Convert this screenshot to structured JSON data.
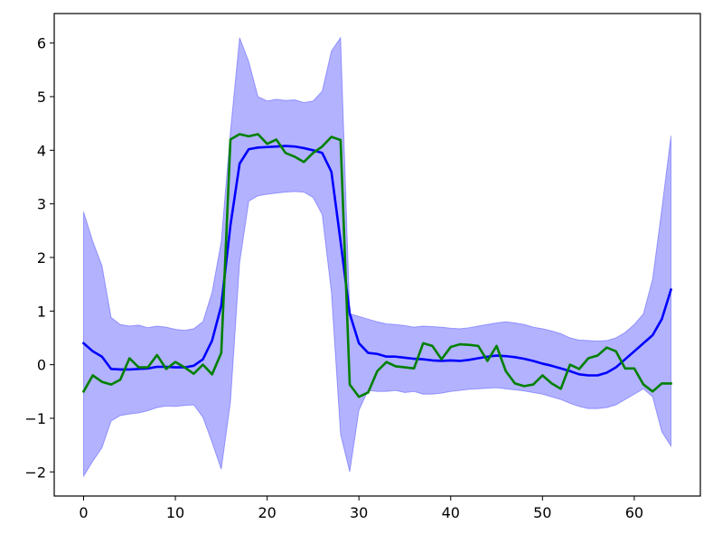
{
  "chart_data": {
    "type": "line",
    "title": "",
    "xlabel": "",
    "ylabel": "",
    "xlim": [
      -3.2,
      67.2
    ],
    "ylim": [
      -2.45,
      6.55
    ],
    "grid": false,
    "legend": "none",
    "x_ticks": [
      0,
      10,
      20,
      30,
      40,
      50,
      60
    ],
    "y_ticks": [
      -2,
      -1,
      0,
      1,
      2,
      3,
      4,
      5,
      6
    ],
    "x_tick_labels": [
      "0",
      "10",
      "20",
      "30",
      "40",
      "50",
      "60"
    ],
    "y_tick_labels": [
      "−2",
      "−1",
      "0",
      "1",
      "2",
      "3",
      "4",
      "5",
      "6"
    ],
    "x": [
      0,
      1,
      2,
      3,
      4,
      5,
      6,
      7,
      8,
      9,
      10,
      11,
      12,
      13,
      14,
      15,
      16,
      17,
      18,
      19,
      20,
      21,
      22,
      23,
      24,
      25,
      26,
      27,
      28,
      29,
      30,
      31,
      32,
      33,
      34,
      35,
      36,
      37,
      38,
      39,
      40,
      41,
      42,
      43,
      44,
      45,
      46,
      47,
      48,
      49,
      50,
      51,
      52,
      53,
      54,
      55,
      56,
      57,
      58,
      59,
      60,
      61,
      62,
      63,
      64
    ],
    "band": {
      "upper": [
        2.85,
        2.3,
        1.85,
        0.88,
        0.75,
        0.72,
        0.74,
        0.69,
        0.72,
        0.7,
        0.66,
        0.64,
        0.67,
        0.8,
        1.35,
        2.3,
        4.35,
        6.1,
        5.65,
        5.0,
        4.92,
        4.95,
        4.93,
        4.94,
        4.89,
        4.92,
        5.1,
        5.85,
        6.1,
        0.95,
        0.9,
        0.85,
        0.8,
        0.76,
        0.75,
        0.73,
        0.7,
        0.72,
        0.71,
        0.7,
        0.68,
        0.67,
        0.69,
        0.72,
        0.75,
        0.78,
        0.8,
        0.78,
        0.75,
        0.7,
        0.67,
        0.63,
        0.58,
        0.5,
        0.46,
        0.45,
        0.44,
        0.45,
        0.5,
        0.6,
        0.75,
        0.95,
        1.6,
        2.9,
        4.27
      ],
      "lower": [
        -2.08,
        -1.8,
        -1.55,
        -1.05,
        -0.95,
        -0.92,
        -0.9,
        -0.86,
        -0.8,
        -0.77,
        -0.78,
        -0.76,
        -0.75,
        -0.98,
        -1.45,
        -1.95,
        -0.7,
        1.9,
        3.05,
        3.15,
        3.18,
        3.2,
        3.22,
        3.23,
        3.22,
        3.12,
        2.8,
        1.35,
        -1.3,
        -2.0,
        -0.85,
        -0.48,
        -0.5,
        -0.5,
        -0.48,
        -0.52,
        -0.5,
        -0.55,
        -0.55,
        -0.53,
        -0.5,
        -0.48,
        -0.46,
        -0.45,
        -0.44,
        -0.43,
        -0.45,
        -0.47,
        -0.49,
        -0.52,
        -0.55,
        -0.6,
        -0.65,
        -0.72,
        -0.78,
        -0.82,
        -0.82,
        -0.8,
        -0.75,
        -0.65,
        -0.55,
        -0.45,
        -0.6,
        -1.25,
        -1.52
      ]
    },
    "series": [
      {
        "color": "#0000ff",
        "values": [
          0.4,
          0.25,
          0.15,
          -0.08,
          -0.09,
          -0.09,
          -0.08,
          -0.07,
          -0.04,
          -0.04,
          -0.05,
          -0.05,
          -0.02,
          0.1,
          0.45,
          1.1,
          2.6,
          3.75,
          4.02,
          4.05,
          4.06,
          4.07,
          4.08,
          4.07,
          4.04,
          4.0,
          3.95,
          3.6,
          2.3,
          0.95,
          0.4,
          0.22,
          0.2,
          0.15,
          0.15,
          0.13,
          0.11,
          0.1,
          0.08,
          0.07,
          0.08,
          0.07,
          0.09,
          0.12,
          0.15,
          0.17,
          0.16,
          0.14,
          0.11,
          0.07,
          0.02,
          -0.02,
          -0.07,
          -0.12,
          -0.18,
          -0.2,
          -0.2,
          -0.15,
          -0.05,
          0.1,
          0.25,
          0.4,
          0.55,
          0.85,
          1.4
        ]
      },
      {
        "color": "#008000",
        "values": [
          -0.5,
          -0.2,
          -0.32,
          -0.37,
          -0.28,
          0.12,
          -0.05,
          -0.05,
          0.18,
          -0.08,
          0.05,
          -0.05,
          -0.17,
          0.0,
          -0.18,
          0.22,
          4.2,
          4.3,
          4.26,
          4.3,
          4.12,
          4.2,
          3.95,
          3.88,
          3.78,
          3.95,
          4.07,
          4.25,
          4.19,
          -0.37,
          -0.6,
          -0.52,
          -0.12,
          0.05,
          -0.03,
          -0.05,
          -0.07,
          0.4,
          0.35,
          0.1,
          0.33,
          0.38,
          0.37,
          0.35,
          0.07,
          0.35,
          -0.12,
          -0.35,
          -0.4,
          -0.37,
          -0.2,
          -0.35,
          -0.45,
          0.0,
          -0.08,
          0.12,
          0.17,
          0.32,
          0.25,
          -0.07,
          -0.07,
          -0.37,
          -0.5,
          -0.35,
          -0.35
        ]
      }
    ],
    "colors": {
      "band_fill": "#0000ff",
      "band_opacity": 0.3,
      "axes": "#000000",
      "background": "#ffffff"
    }
  }
}
